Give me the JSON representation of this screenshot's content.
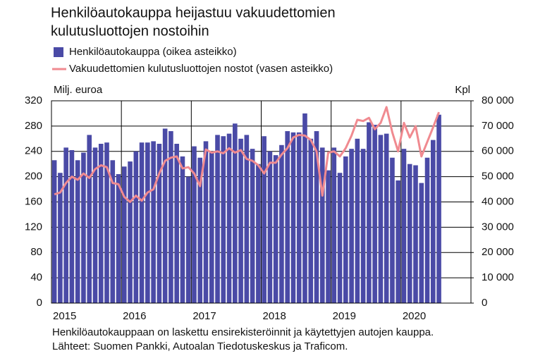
{
  "chart_data": {
    "type": "combo",
    "title": [
      "Henkilöautokauppa heijastuu vakuudettomien",
      "kulutusluottojen nostoihin"
    ],
    "y_label": "Milj. euroa",
    "y2_label": "Kpl",
    "footnote": [
      "Henkilöautokauppaan on laskettu ensirekisteröinnit ja käytettyjen autojen kauppa.",
      "Lähteet: Suomen Pankki, Autoalan Tiedotuskeskus ja Traficom."
    ],
    "categories": [
      "2015",
      null,
      null,
      null,
      null,
      null,
      null,
      null,
      null,
      null,
      null,
      null,
      "2016",
      null,
      null,
      null,
      null,
      null,
      null,
      null,
      null,
      null,
      null,
      null,
      "2017",
      null,
      null,
      null,
      null,
      null,
      null,
      null,
      null,
      null,
      null,
      null,
      "2018",
      null,
      null,
      null,
      null,
      null,
      null,
      null,
      null,
      null,
      null,
      null,
      "2019",
      null,
      null,
      null,
      null,
      null,
      null,
      null,
      null,
      null,
      null,
      null,
      "2020",
      null,
      null,
      null,
      null,
      null,
      null,
      null,
      null,
      null,
      null,
      null
    ],
    "ylim": [
      0,
      320
    ],
    "yticks": [
      0,
      40,
      80,
      120,
      160,
      200,
      240,
      280,
      320
    ],
    "y2lim": [
      0,
      80000
    ],
    "y2ticks": [
      {
        "value": 0,
        "label": "0"
      },
      {
        "value": 10000,
        "label": "10 000"
      },
      {
        "value": 20000,
        "label": "20 000"
      },
      {
        "value": 30000,
        "label": "30 000"
      },
      {
        "value": 40000,
        "label": "40 000"
      },
      {
        "value": 50000,
        "label": "50 000"
      },
      {
        "value": 60000,
        "label": "60 000"
      },
      {
        "value": 70000,
        "label": "70 000"
      },
      {
        "value": 80000,
        "label": "80 000"
      }
    ],
    "grid": true,
    "series": [
      {
        "name": "Henkilöautokauppa (oikea asteikko)",
        "type": "bar",
        "axis": "y2",
        "color": "#4a4aa6",
        "values": [
          56500,
          51500,
          61500,
          60500,
          56500,
          59500,
          66500,
          61500,
          63000,
          63500,
          56500,
          51000,
          54000,
          56000,
          60000,
          63500,
          63500,
          64000,
          63000,
          69000,
          68000,
          63000,
          58000,
          50000,
          62000,
          57500,
          64000,
          60000,
          66500,
          66000,
          67000,
          71000,
          65000,
          66500,
          61000,
          55000,
          66000,
          60000,
          58500,
          62500,
          68000,
          67500,
          67500,
          75000,
          65000,
          68000,
          61500,
          52500,
          61500,
          51500,
          58000,
          61000,
          65000,
          61000,
          71500,
          70500,
          66500,
          67000,
          57500,
          48500,
          61000,
          55000,
          54500,
          47500,
          57500,
          64500,
          74500,
          null,
          null,
          null,
          null,
          null
        ]
      },
      {
        "name": "Vakuudettomien kulutusluottojen nostot (vasen asteikko)",
        "type": "line",
        "axis": "y",
        "color": "#f08a90",
        "values": [
          172,
          175,
          190,
          200,
          195,
          205,
          198,
          212,
          218,
          215,
          190,
          188,
          168,
          160,
          170,
          162,
          175,
          180,
          205,
          225,
          230,
          232,
          213,
          215,
          205,
          185,
          243,
          238,
          240,
          237,
          245,
          238,
          242,
          228,
          225,
          218,
          205,
          222,
          222,
          235,
          245,
          262,
          266,
          265,
          258,
          240,
          170,
          238,
          240,
          232,
          245,
          265,
          290,
          288,
          293,
          275,
          285,
          310,
          270,
          240,
          285,
          262,
          280,
          232,
          255,
          278,
          302,
          null,
          null,
          null,
          null,
          null
        ]
      }
    ]
  }
}
